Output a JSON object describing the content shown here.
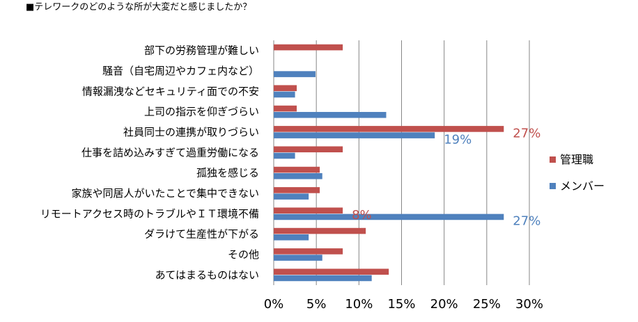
{
  "chart_data": {
    "type": "bar",
    "orientation": "horizontal",
    "title": "■テレワークのどのような所が大変だと感じましたか？",
    "categories": [
      "部下の労務管理が難しい",
      "騒音（自宅周辺やカフェ内など）",
      "情報漏洩などセキュリティ面での不安",
      "上司の指示を仰ぎづらい",
      "社員同士の連携が取りづらい",
      "仕事を詰め込みすぎて過重労働になる",
      "孤独を感じる",
      "家族や同居人がいたことで集中できない",
      "リモートアクセス時のトラブルやＩＴ環境不備",
      "ダラけて生産性が下がる",
      "その他",
      "あてはまるものはない"
    ],
    "series": [
      {
        "name": "管理職",
        "color": "#c0504d",
        "values": [
          8.1,
          0,
          2.7,
          2.7,
          27,
          8.1,
          5.4,
          5.4,
          8.1,
          10.8,
          8.1,
          13.5
        ]
      },
      {
        "name": "メンバー",
        "color": "#4f81bd",
        "values": [
          0,
          4.9,
          2.5,
          13.2,
          18.9,
          2.5,
          5.7,
          4.1,
          27,
          4.1,
          5.7,
          11.5
        ]
      }
    ],
    "data_labels": [
      {
        "series": 0,
        "index": 4,
        "text": "27%"
      },
      {
        "series": 1,
        "index": 4,
        "text": "19%"
      },
      {
        "series": 0,
        "index": 8,
        "text": "8%"
      },
      {
        "series": 1,
        "index": 8,
        "text": "27%"
      }
    ],
    "xlim": [
      0,
      30
    ],
    "xticks": [
      "0%",
      "5%",
      "10%",
      "15%",
      "20%",
      "25%",
      "30%"
    ],
    "xtick_values": [
      0,
      5,
      10,
      15,
      20,
      25,
      30
    ],
    "grid": true,
    "legend_position": "right"
  }
}
